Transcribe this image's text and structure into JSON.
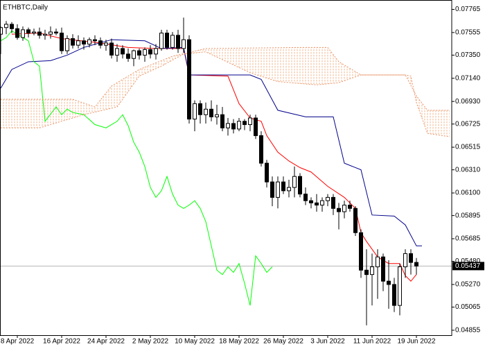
{
  "chart_data": {
    "type": "candlestick",
    "title": "ETHBTC,Daily",
    "x": [
      95,
      96,
      97,
      98,
      99,
      100,
      101,
      102,
      103,
      104,
      105,
      106,
      107,
      108,
      109,
      110,
      111,
      112,
      113,
      114,
      115,
      116,
      117,
      118,
      119,
      120,
      121,
      122,
      123,
      124,
      125,
      126,
      127,
      128,
      129,
      130,
      131,
      132,
      133,
      134,
      135,
      136,
      137,
      138,
      139,
      140,
      141,
      142,
      143,
      144,
      145,
      146,
      147,
      148,
      149,
      150,
      151,
      152,
      153,
      154,
      155,
      156,
      157,
      158,
      159,
      160,
      161,
      162,
      163,
      164,
      165,
      166,
      167,
      168,
      169,
      170
    ],
    "open": [
      0.0754,
      0.076,
      0.0763,
      0.0759,
      0.0751,
      0.0758,
      0.0755,
      0.0756,
      0.0753,
      0.0754,
      0.0756,
      0.0755,
      0.0739,
      0.075,
      0.0744,
      0.0748,
      0.0745,
      0.0749,
      0.0748,
      0.0744,
      0.0746,
      0.0735,
      0.0741,
      0.0736,
      0.0732,
      0.0739,
      0.0735,
      0.074,
      0.0736,
      0.0741,
      0.0755,
      0.0742,
      0.0753,
      0.0741,
      0.0749,
      0.0677,
      0.0691,
      0.0681,
      0.0686,
      0.0679,
      0.0681,
      0.0669,
      0.0673,
      0.0668,
      0.0675,
      0.0672,
      0.0678,
      0.0662,
      0.0637,
      0.062,
      0.0606,
      0.062,
      0.0612,
      0.0615,
      0.0625,
      0.0609,
      0.0603,
      0.0601,
      0.0599,
      0.0603,
      0.0606,
      0.0596,
      0.0593,
      0.0599,
      0.0596,
      0.0574,
      0.054,
      0.0536,
      0.0543,
      0.0552,
      0.053,
      0.0527,
      0.0508,
      0.0543,
      0.0555,
      0.0547
    ],
    "high": [
      0.0761,
      0.0766,
      0.0765,
      0.0763,
      0.0761,
      0.076,
      0.0759,
      0.076,
      0.0758,
      0.0761,
      0.0759,
      0.076,
      0.0753,
      0.0754,
      0.0753,
      0.0751,
      0.0751,
      0.0753,
      0.0751,
      0.0749,
      0.075,
      0.0745,
      0.0744,
      0.0741,
      0.074,
      0.0741,
      0.0742,
      0.0744,
      0.0745,
      0.0758,
      0.0758,
      0.0756,
      0.0758,
      0.0769,
      0.0753,
      0.0694,
      0.0694,
      0.0692,
      0.0694,
      0.069,
      0.0688,
      0.0678,
      0.0677,
      0.0678,
      0.0677,
      0.0681,
      0.0681,
      0.0666,
      0.064,
      0.0625,
      0.0625,
      0.0625,
      0.0622,
      0.0634,
      0.0628,
      0.0615,
      0.0606,
      0.0609,
      0.0606,
      0.0609,
      0.0609,
      0.0601,
      0.0603,
      0.0603,
      0.0598,
      0.0577,
      0.0559,
      0.0555,
      0.0559,
      0.0555,
      0.0549,
      0.0533,
      0.0546,
      0.0559,
      0.0559,
      0.0551
    ],
    "low": [
      0.0736,
      0.0754,
      0.0755,
      0.0749,
      0.0748,
      0.0751,
      0.0753,
      0.075,
      0.0749,
      0.075,
      0.0753,
      0.0736,
      0.0736,
      0.0741,
      0.0741,
      0.074,
      0.0742,
      0.0744,
      0.0741,
      0.0739,
      0.0732,
      0.0729,
      0.0732,
      0.0729,
      0.0725,
      0.0731,
      0.0729,
      0.0732,
      0.0731,
      0.0739,
      0.074,
      0.074,
      0.0737,
      0.0737,
      0.0673,
      0.0666,
      0.0673,
      0.0673,
      0.0675,
      0.0672,
      0.0666,
      0.0662,
      0.0664,
      0.0666,
      0.0667,
      0.0666,
      0.0659,
      0.0634,
      0.0615,
      0.0598,
      0.0596,
      0.0609,
      0.0606,
      0.0606,
      0.0606,
      0.0599,
      0.0596,
      0.0593,
      0.0593,
      0.0598,
      0.059,
      0.0577,
      0.0587,
      0.0593,
      0.0571,
      0.0533,
      0.049,
      0.0508,
      0.0514,
      0.0521,
      0.0505,
      0.0502,
      0.0499,
      0.0533,
      0.0536,
      0.0536
    ],
    "close": [
      0.076,
      0.0763,
      0.0759,
      0.0751,
      0.0758,
      0.0755,
      0.0756,
      0.0753,
      0.0754,
      0.0756,
      0.0755,
      0.0739,
      0.075,
      0.0744,
      0.0748,
      0.0745,
      0.0749,
      0.0748,
      0.0744,
      0.0746,
      0.0735,
      0.0741,
      0.0736,
      0.0732,
      0.0739,
      0.0735,
      0.074,
      0.0736,
      0.0741,
      0.0755,
      0.0742,
      0.0753,
      0.0741,
      0.0749,
      0.0677,
      0.0691,
      0.0681,
      0.0686,
      0.0679,
      0.0681,
      0.0669,
      0.0673,
      0.0668,
      0.0675,
      0.0672,
      0.0678,
      0.0662,
      0.0637,
      0.062,
      0.0606,
      0.062,
      0.0612,
      0.0615,
      0.0625,
      0.0609,
      0.0603,
      0.0601,
      0.0599,
      0.0603,
      0.0606,
      0.0596,
      0.0593,
      0.0599,
      0.0596,
      0.0574,
      0.054,
      0.0536,
      0.0543,
      0.0552,
      0.053,
      0.0527,
      0.0508,
      0.0543,
      0.0555,
      0.0547,
      0.05437
    ],
    "up_color": "#ffffff",
    "down_color": "#000000",
    "series": [
      {
        "color": "#ff0000",
        "x": [
          97,
          102,
          106,
          113,
          118,
          123,
          128,
          129,
          136,
          138,
          140,
          142,
          143,
          145,
          147,
          149,
          151,
          154,
          157,
          159,
          160,
          161,
          163,
          165,
          167,
          168,
          169,
          170
        ],
        "values": [
          0.0754,
          0.0755,
          0.075,
          0.0746,
          0.0742,
          0.0741,
          0.0741,
          0.0717,
          0.0716,
          0.0691,
          0.0678,
          0.0675,
          0.0662,
          0.0647,
          0.0639,
          0.0633,
          0.0629,
          0.0616,
          0.0606,
          0.0596,
          0.0574,
          0.0566,
          0.0552,
          0.0546,
          0.0546,
          0.0535,
          0.053,
          0.0536
        ]
      },
      {
        "color": "#00008b",
        "x": [
          95,
          97,
          100,
          104,
          107,
          110,
          115,
          121,
          124,
          128,
          129,
          140,
          142,
          145,
          150,
          155,
          157,
          160,
          162,
          166,
          168,
          170,
          171
        ],
        "values": [
          0.0705,
          0.0722,
          0.0729,
          0.073,
          0.0735,
          0.0742,
          0.0749,
          0.0748,
          0.0741,
          0.0742,
          0.0717,
          0.0717,
          0.0713,
          0.0685,
          0.0679,
          0.0679,
          0.0637,
          0.0631,
          0.059,
          0.0589,
          0.0581,
          0.0562,
          0.0562
        ]
      },
      {
        "color": "#00ff00",
        "x": [
          95,
          96,
          97,
          99,
          100,
          101,
          102,
          103,
          105,
          106,
          107,
          108,
          110,
          112,
          114,
          116,
          117,
          118,
          119,
          120,
          121,
          122,
          123,
          124,
          125,
          126,
          127,
          128,
          129,
          130,
          131,
          132,
          133,
          134,
          135,
          136,
          137,
          138,
          139,
          140,
          141,
          142,
          143,
          144
        ],
        "values": [
          0.0748,
          0.0751,
          0.0757,
          0.0751,
          0.0748,
          0.0729,
          0.0725,
          0.0675,
          0.0688,
          0.0681,
          0.0686,
          0.0683,
          0.0681,
          0.0672,
          0.0669,
          0.0675,
          0.0681,
          0.0671,
          0.0656,
          0.0647,
          0.0634,
          0.0615,
          0.0606,
          0.0612,
          0.0625,
          0.0609,
          0.0599,
          0.0596,
          0.0599,
          0.0603,
          0.0596,
          0.0584,
          0.0562,
          0.054,
          0.0536,
          0.0543,
          0.0538,
          0.0546,
          0.0528,
          0.0508,
          0.0553,
          0.0546,
          0.0538,
          0.0543
        ]
      },
      {
        "color": "#e8956a",
        "style": "dotted",
        "x": [
          95,
          108,
          112,
          115,
          120,
          126,
          132,
          150,
          154,
          156,
          160,
          168,
          170,
          172,
          176
        ],
        "values": [
          0.0695,
          0.0695,
          0.0688,
          0.0707,
          0.0722,
          0.0734,
          0.0741,
          0.0742,
          0.0742,
          0.0729,
          0.0717,
          0.0717,
          0.0698,
          0.0685,
          0.0685
        ]
      },
      {
        "color": "#e8956a",
        "style": "dotted",
        "x": [
          95,
          102,
          106,
          110,
          116,
          120,
          124,
          128,
          132,
          140,
          145,
          152,
          156,
          160,
          168,
          169,
          170,
          172,
          176
        ],
        "values": [
          0.0669,
          0.0669,
          0.0675,
          0.0681,
          0.0688,
          0.0716,
          0.0725,
          0.0736,
          0.0738,
          0.0719,
          0.0711,
          0.0708,
          0.071,
          0.0717,
          0.0717,
          0.0716,
          0.0692,
          0.0664,
          0.0661
        ]
      }
    ],
    "cloud_color": "#f0b48c",
    "last_price": 0.05437,
    "last_price_color": "#b4b4b4",
    "xlim": [
      94.875,
      176.375
    ],
    "ylim": [
      0.0481,
      0.0785
    ],
    "xticks": [
      {
        "value": 98,
        "label": "8 Apr 2022"
      },
      {
        "value": 106,
        "label": "16 Apr 2022"
      },
      {
        "value": 114,
        "label": "24 Apr 2022"
      },
      {
        "value": 122,
        "label": "2 May 2022"
      },
      {
        "value": 130,
        "label": "10 May 2022"
      },
      {
        "value": 138,
        "label": "18 May 2022"
      },
      {
        "value": 146,
        "label": "26 May 2022"
      },
      {
        "value": 154,
        "label": "3 Jun 2022"
      },
      {
        "value": 162,
        "label": "11 Jun 2022"
      },
      {
        "value": 170,
        "label": "19 Jun 2022"
      }
    ],
    "yticks": [
      0.07765,
      0.07555,
      {
        "value": 0.0735,
        "label": "0.07350"
      },
      {
        "value": 0.0714,
        "label": "0.07140"
      },
      {
        "value": 0.0693,
        "label": "0.06930"
      },
      0.06725,
      0.06515,
      {
        "value": 0.0631,
        "label": "0.06310"
      },
      {
        "value": 0.061,
        "label": "0.06100"
      },
      0.05895,
      0.05685,
      {
        "value": 0.0548,
        "label": "0.05480"
      },
      {
        "value": 0.0527,
        "label": "0.05270"
      },
      0.05065,
      0.04855
    ]
  }
}
